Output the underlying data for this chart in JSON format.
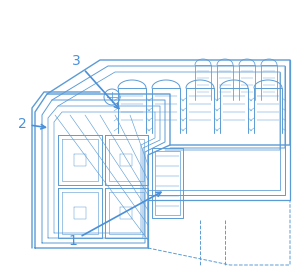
{
  "bg_color": "#ffffff",
  "line_color": "#5b9bd5",
  "label_color": "#4a90d9",
  "figsize": [
    3.0,
    2.72
  ],
  "dpi": 100,
  "lw": 0.7,
  "label_fontsize": 10
}
